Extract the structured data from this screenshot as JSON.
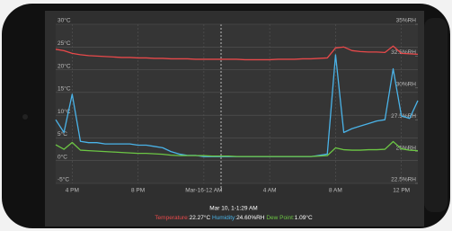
{
  "chart_data": {
    "type": "line",
    "categories": [
      null,
      null,
      "4 PM",
      null,
      null,
      null,
      null,
      null,
      null,
      null,
      "8 PM",
      null,
      null,
      null,
      null,
      null,
      null,
      null,
      "Mar-16-12 AM",
      null,
      null,
      null,
      null,
      null,
      null,
      null,
      "4 AM",
      null,
      null,
      null,
      null,
      null,
      null,
      null,
      "8 AM",
      null,
      null,
      null,
      null,
      null,
      null,
      null,
      "12 PM",
      null,
      null
    ],
    "series": [
      {
        "name": "Temperature:",
        "color": "#e8494a",
        "axis": "y",
        "values": [
          24.5,
          24.2,
          23.6,
          23.3,
          23.1,
          23.0,
          22.9,
          22.8,
          22.7,
          22.7,
          22.6,
          22.6,
          22.5,
          22.5,
          22.4,
          22.4,
          22.4,
          22.3,
          22.3,
          22.3,
          22.3,
          22.3,
          22.3,
          22.2,
          22.2,
          22.2,
          22.2,
          22.3,
          22.3,
          22.3,
          22.4,
          22.4,
          22.5,
          22.6,
          24.8,
          25.0,
          24.2,
          24.0,
          23.9,
          23.9,
          23.8,
          25.2,
          23.6,
          23.5,
          23.4
        ]
      },
      {
        "name": "Humidity:",
        "color": "#4ab3e8",
        "axis": "y2",
        "values": [
          27.5,
          26.5,
          29.5,
          25.8,
          25.7,
          25.7,
          25.6,
          25.6,
          25.6,
          25.6,
          25.5,
          25.5,
          25.4,
          25.3,
          25.0,
          24.8,
          24.7,
          24.7,
          24.6,
          24.6,
          24.6,
          24.6,
          24.6,
          24.6,
          24.6,
          24.6,
          24.6,
          24.6,
          24.6,
          24.6,
          24.6,
          24.6,
          24.7,
          24.8,
          32.6,
          26.5,
          26.8,
          27.0,
          27.2,
          27.4,
          27.5,
          31.5,
          27.8,
          27.6,
          29.0
        ]
      },
      {
        "name": "Dew Point:",
        "color": "#6cc644",
        "axis": "y",
        "values": [
          3.5,
          2.5,
          4.0,
          2.3,
          2.2,
          2.1,
          2.0,
          1.9,
          1.8,
          1.7,
          1.6,
          1.6,
          1.5,
          1.4,
          1.2,
          1.1,
          1.1,
          1.1,
          1.1,
          1.0,
          1.0,
          1.0,
          0.9,
          0.9,
          0.9,
          0.9,
          0.9,
          0.9,
          0.9,
          0.9,
          0.9,
          0.9,
          1.0,
          1.1,
          2.8,
          2.4,
          2.3,
          2.3,
          2.4,
          2.4,
          2.5,
          4.2,
          2.6,
          2.3,
          2.2
        ]
      }
    ],
    "ylim": [
      -5,
      30
    ],
    "yticks": [
      {
        "value": -5,
        "label": "-5°C"
      },
      {
        "value": 0,
        "label": "0°C"
      },
      {
        "value": 5,
        "label": "5°C"
      },
      {
        "value": 10,
        "label": "10°C"
      },
      {
        "value": 15,
        "label": "15°C"
      },
      {
        "value": 20,
        "label": "20°C"
      },
      {
        "value": 25,
        "label": "25°C"
      },
      {
        "value": 30,
        "label": "30°C"
      }
    ],
    "y2lim": [
      22.5,
      35
    ],
    "y2ticks": [
      {
        "value": 22.5,
        "label": "22.5%RH"
      },
      {
        "value": 25,
        "label": "25%RH"
      },
      {
        "value": 27.5,
        "label": "27.5%RH"
      },
      {
        "value": 30,
        "label": "30%RH"
      },
      {
        "value": 32.5,
        "label": "32.5%RH"
      },
      {
        "value": 35,
        "label": "35%RH"
      }
    ],
    "grid": true,
    "readout_time": "Mar 10, 1-1:29 AM",
    "readout_values": [
      "22.27°C",
      "24.60%RH",
      "1.09°C"
    ]
  }
}
